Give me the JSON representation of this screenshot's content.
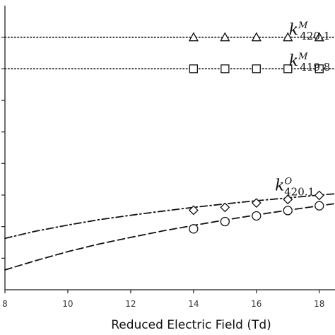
{
  "chart_data": {
    "type": "line",
    "xlabel": "Reduced Electric Field (Td)",
    "ylabel": "",
    "title": "",
    "xlim": [
      8,
      18.5
    ],
    "ylim": [
      0,
      9
    ],
    "x_ticks": [
      8,
      10,
      12,
      14,
      16,
      18
    ],
    "x_tick_labels": [
      "8",
      "10",
      "12",
      "14",
      "16",
      "18"
    ],
    "grid": false,
    "series": [
      {
        "style": "dotted",
        "marker": "triangle",
        "curve_x": [
          8,
          18.5
        ],
        "curve_y": [
          8.0,
          8.0
        ],
        "points_x": [
          14,
          15,
          16,
          17,
          18
        ],
        "points_y": [
          8.0,
          8.0,
          8.0,
          8.0,
          8.0
        ]
      },
      {
        "style": "dotted",
        "marker": "square",
        "curve_x": [
          8,
          18.5
        ],
        "curve_y": [
          7.0,
          7.0
        ],
        "points_x": [
          14,
          15,
          16,
          17,
          18
        ],
        "points_y": [
          7.0,
          7.0,
          7.0,
          7.0,
          7.0
        ]
      },
      {
        "style": "dash-dot",
        "marker": "diamond",
        "curve_x": [
          8,
          9,
          10,
          11,
          12,
          13,
          14,
          15,
          16,
          17,
          18,
          18.5
        ],
        "curve_y": [
          1.63,
          1.86,
          2.05,
          2.22,
          2.36,
          2.49,
          2.61,
          2.72,
          2.82,
          2.91,
          3.0,
          3.04
        ],
        "points_x": [
          14,
          15,
          16,
          17,
          18
        ],
        "points_y": [
          2.52,
          2.61,
          2.75,
          2.86,
          2.99
        ]
      },
      {
        "style": "dashed",
        "marker": "circle",
        "curve_x": [
          8,
          9,
          10,
          11,
          12,
          13,
          14,
          15,
          16,
          17,
          18,
          18.5
        ],
        "curve_y": [
          0.63,
          0.93,
          1.21,
          1.45,
          1.66,
          1.86,
          2.04,
          2.21,
          2.37,
          2.52,
          2.66,
          2.73
        ],
        "points_x": [
          14,
          15,
          16,
          17,
          18
        ],
        "points_y": [
          1.93,
          2.16,
          2.34,
          2.51,
          2.66
        ]
      }
    ],
    "annotations": [
      {
        "main": "k",
        "sup": "M",
        "sub": "420.1",
        "at_x": 18.35,
        "at_y": 8.08
      },
      {
        "main": "k",
        "sup": "M",
        "sub": "419.8",
        "at_x": 18.35,
        "at_y": 7.1
      },
      {
        "main": "k",
        "sup": "O",
        "sub": "420.1",
        "at_x": 17.85,
        "at_y": 3.15
      }
    ]
  }
}
